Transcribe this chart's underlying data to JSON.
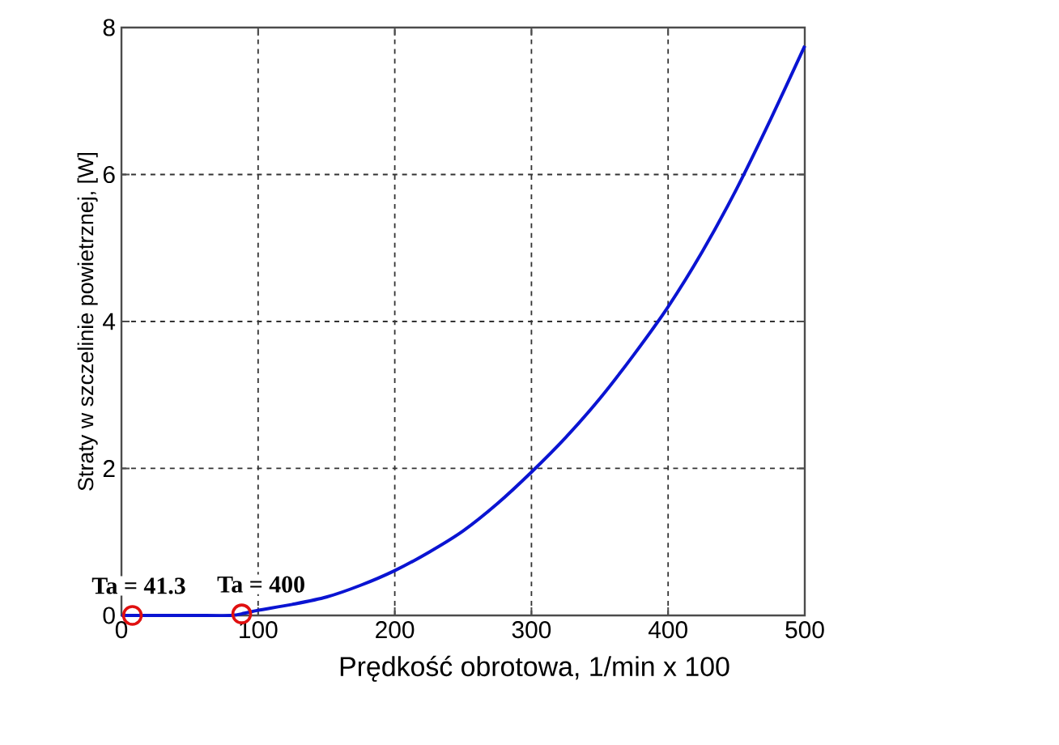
{
  "chart_data": {
    "type": "line",
    "xlabel": "Prędkość obrotowa, 1/min x 100",
    "ylabel": "Straty w szczelinie powietrznej, [W]",
    "xlim": [
      0,
      500
    ],
    "ylim": [
      0,
      8
    ],
    "xticks": [
      0,
      100,
      200,
      300,
      400,
      500
    ],
    "yticks": [
      0,
      2,
      4,
      6,
      8
    ],
    "grid": true,
    "line_style": "solid",
    "series": [
      {
        "type": "line",
        "color": "#0a14d2",
        "x": [
          0,
          50,
          80,
          90,
          100,
          125,
          150,
          175,
          200,
          225,
          250,
          275,
          300,
          325,
          350,
          375,
          400,
          425,
          450,
          475,
          500
        ],
        "values": [
          0,
          0,
          0,
          0.03,
          0.07,
          0.15,
          0.25,
          0.41,
          0.61,
          0.86,
          1.15,
          1.52,
          1.95,
          2.42,
          2.95,
          3.55,
          4.2,
          4.95,
          5.8,
          6.75,
          7.75
        ]
      },
      {
        "type": "scatter",
        "marker": "circle",
        "color": "#e01010",
        "x": [
          8,
          88
        ],
        "values": [
          0,
          0.02
        ]
      }
    ],
    "annotations": [
      {
        "text": "Ta = 41.3",
        "x": 8,
        "y": 0
      },
      {
        "text": "Ta = 400",
        "x": 88,
        "y": 0.02
      }
    ]
  }
}
